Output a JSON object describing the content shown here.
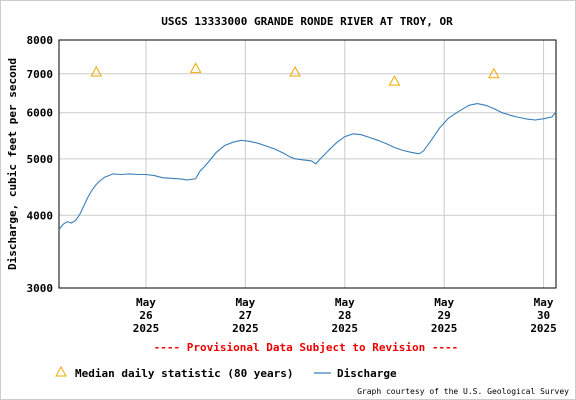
{
  "chart_data": {
    "type": "line",
    "title": "USGS 13333000 GRANDE RONDE RIVER AT TROY, OR",
    "ylabel": "Discharge, cubic feet per second",
    "xlabel": "",
    "y_scale": "log",
    "ylim": [
      3000,
      8000
    ],
    "y_ticks": [
      3000,
      4000,
      5000,
      6000,
      7000,
      8000
    ],
    "y_tick_labels": [
      "3000",
      "4000",
      "5000",
      "6000",
      "7000",
      "8000"
    ],
    "xlim": [
      "2025-05-25T15:00",
      "2025-05-30T15:00"
    ],
    "x_ticks": [
      {
        "date": "2025-05-26T12:00",
        "month": "May",
        "day": "26",
        "year": "2025"
      },
      {
        "date": "2025-05-27T12:00",
        "month": "May",
        "day": "27",
        "year": "2025"
      },
      {
        "date": "2025-05-28T12:00",
        "month": "May",
        "day": "28",
        "year": "2025"
      },
      {
        "date": "2025-05-29T12:00",
        "month": "May",
        "day": "29",
        "year": "2025"
      },
      {
        "date": "2025-05-30T12:00",
        "month": "May",
        "day": "30",
        "year": "2025"
      }
    ],
    "grid": true,
    "series": [
      {
        "name": "Discharge",
        "kind": "line",
        "color": "#3a7fb8",
        "points": [
          [
            "2025-05-25T15:00",
            3780
          ],
          [
            "2025-05-25T16:00",
            3860
          ],
          [
            "2025-05-25T17:00",
            3900
          ],
          [
            "2025-05-25T18:00",
            3880
          ],
          [
            "2025-05-25T19:00",
            3920
          ],
          [
            "2025-05-25T20:00",
            4010
          ],
          [
            "2025-05-25T21:00",
            4150
          ],
          [
            "2025-05-25T22:00",
            4300
          ],
          [
            "2025-05-25T23:00",
            4420
          ],
          [
            "2025-05-26T00:00",
            4520
          ],
          [
            "2025-05-26T01:00",
            4590
          ],
          [
            "2025-05-26T02:00",
            4650
          ],
          [
            "2025-05-26T03:00",
            4680
          ],
          [
            "2025-05-26T04:00",
            4710
          ],
          [
            "2025-05-26T06:00",
            4700
          ],
          [
            "2025-05-26T08:00",
            4710
          ],
          [
            "2025-05-26T10:00",
            4700
          ],
          [
            "2025-05-26T12:00",
            4700
          ],
          [
            "2025-05-26T14:00",
            4680
          ],
          [
            "2025-05-26T16:00",
            4640
          ],
          [
            "2025-05-26T18:00",
            4630
          ],
          [
            "2025-05-26T20:00",
            4620
          ],
          [
            "2025-05-26T22:00",
            4600
          ],
          [
            "2025-05-27T00:00",
            4620
          ],
          [
            "2025-05-27T01:00",
            4760
          ],
          [
            "2025-05-27T02:00",
            4840
          ],
          [
            "2025-05-27T03:00",
            4930
          ],
          [
            "2025-05-27T05:00",
            5130
          ],
          [
            "2025-05-27T07:00",
            5270
          ],
          [
            "2025-05-27T09:00",
            5340
          ],
          [
            "2025-05-27T11:00",
            5380
          ],
          [
            "2025-05-27T13:00",
            5360
          ],
          [
            "2025-05-27T15:00",
            5320
          ],
          [
            "2025-05-27T17:00",
            5260
          ],
          [
            "2025-05-27T19:00",
            5200
          ],
          [
            "2025-05-27T21:00",
            5120
          ],
          [
            "2025-05-27T23:00",
            5030
          ],
          [
            "2025-05-28T00:00",
            5000
          ],
          [
            "2025-05-28T02:00",
            4980
          ],
          [
            "2025-05-28T04:00",
            4960
          ],
          [
            "2025-05-28T05:00",
            4900
          ],
          [
            "2025-05-28T06:00",
            4990
          ],
          [
            "2025-05-28T08:00",
            5160
          ],
          [
            "2025-05-28T10:00",
            5330
          ],
          [
            "2025-05-28T12:00",
            5460
          ],
          [
            "2025-05-28T14:00",
            5520
          ],
          [
            "2025-05-28T16:00",
            5500
          ],
          [
            "2025-05-28T18:00",
            5440
          ],
          [
            "2025-05-28T20:00",
            5380
          ],
          [
            "2025-05-28T22:00",
            5310
          ],
          [
            "2025-05-29T00:00",
            5230
          ],
          [
            "2025-05-29T02:00",
            5170
          ],
          [
            "2025-05-29T04:00",
            5130
          ],
          [
            "2025-05-29T06:00",
            5100
          ],
          [
            "2025-05-29T07:00",
            5160
          ],
          [
            "2025-05-29T09:00",
            5400
          ],
          [
            "2025-05-29T11:00",
            5660
          ],
          [
            "2025-05-29T13:00",
            5870
          ],
          [
            "2025-05-29T15:00",
            6000
          ],
          [
            "2025-05-29T17:00",
            6120
          ],
          [
            "2025-05-29T18:00",
            6180
          ],
          [
            "2025-05-29T20:00",
            6220
          ],
          [
            "2025-05-29T22:00",
            6180
          ],
          [
            "2025-05-30T00:00",
            6100
          ],
          [
            "2025-05-30T02:00",
            6000
          ],
          [
            "2025-05-30T04:00",
            5940
          ],
          [
            "2025-05-30T06:00",
            5890
          ],
          [
            "2025-05-30T08:00",
            5850
          ],
          [
            "2025-05-30T10:00",
            5830
          ],
          [
            "2025-05-30T12:00",
            5860
          ],
          [
            "2025-05-30T14:00",
            5900
          ],
          [
            "2025-05-30T15:00",
            6020
          ]
        ]
      },
      {
        "name": "Median daily statistic (80 years)",
        "kind": "marker",
        "marker": "triangle",
        "color": "#f0a800",
        "points": [
          [
            "2025-05-26T00:00",
            7050
          ],
          [
            "2025-05-27T00:00",
            7150
          ],
          [
            "2025-05-28T00:00",
            7050
          ],
          [
            "2025-05-29T00:00",
            6800
          ],
          [
            "2025-05-30T00:00",
            7000
          ]
        ]
      }
    ],
    "legend_placement": "bottom",
    "legend": [
      {
        "label": "Median daily statistic (80 years)",
        "symbol": "triangle",
        "color": "#f0a800"
      },
      {
        "label": "Discharge",
        "symbol": "line",
        "color": "#3a7fb8"
      }
    ],
    "annotations": {
      "provisional": "---- Provisional Data Subject to Revision ----",
      "provisional_color": "#ee0000",
      "credit": "Graph courtesy of the U.S. Geological Survey"
    }
  }
}
